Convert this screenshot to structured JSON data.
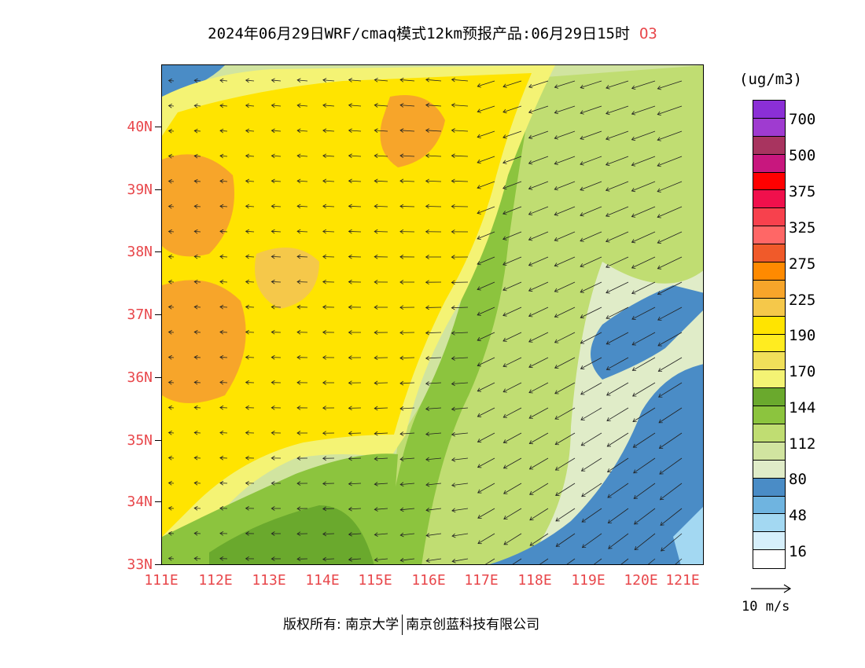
{
  "title": {
    "text": "2024年06月29日WRF/cmaq模式12km预报产品:06月29日15时",
    "species": "O3"
  },
  "axes": {
    "lat_labels": [
      "40N",
      "39N",
      "38N",
      "37N",
      "36N",
      "35N",
      "34N",
      "33N"
    ],
    "lon_labels": [
      "111E",
      "112E",
      "113E",
      "114E",
      "115E",
      "116E",
      "117E",
      "118E",
      "119E",
      "120E",
      "121E"
    ],
    "label_color": "#e8474b"
  },
  "colorbar": {
    "unit": "(ug/m3)",
    "labels": [
      "700",
      "500",
      "375",
      "325",
      "275",
      "225",
      "190",
      "170",
      "144",
      "112",
      "80",
      "48",
      "16"
    ],
    "colors": [
      "#8b2fd6",
      "#9f3bd0",
      "#a8345f",
      "#c8177e",
      "#ff0000",
      "#f0104c",
      "#f7414d",
      "#ff6766",
      "#f05a2a",
      "#ff8a00",
      "#f7a52a",
      "#f5c84a",
      "#ffe400",
      "#ffec20",
      "#f1e05a",
      "#f4f374",
      "#6aa92d",
      "#8cc43e",
      "#c0dd72",
      "#d1e4a0",
      "#e0ecc8",
      "#4a8cc6",
      "#6fb4e0",
      "#a3d8f2",
      "#d6effb",
      "#ffffff"
    ]
  },
  "wind_reference": {
    "label": "10 m/s"
  },
  "footer": {
    "copyright_label": "版权所有:",
    "org1": "南京大学",
    "org2": "南京创蓝科技有限公司"
  }
}
